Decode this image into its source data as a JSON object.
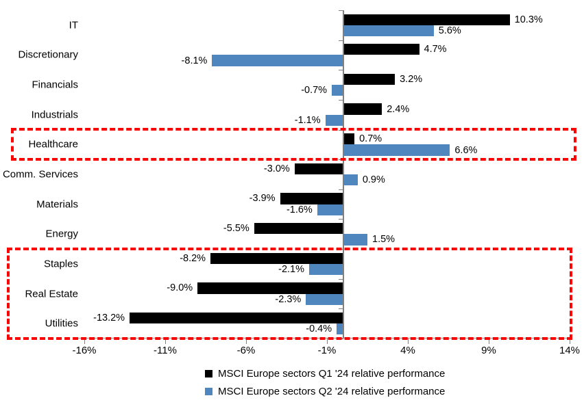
{
  "chart_data": {
    "type": "bar",
    "orientation": "horizontal",
    "title": "",
    "categories": [
      "IT",
      "Discretionary",
      "Financials",
      "Industrials",
      "Healthcare",
      "Comm. Services",
      "Materials",
      "Energy",
      "Staples",
      "Real Estate",
      "Utilities"
    ],
    "series": [
      {
        "name": "MSCI Europe sectors Q1 '24 relative performance",
        "color": "#000000",
        "values": [
          10.3,
          4.7,
          3.2,
          2.4,
          0.7,
          -3.0,
          -3.9,
          -5.5,
          -8.2,
          -9.0,
          -13.2
        ],
        "labels": [
          "10.3%",
          "4.7%",
          "3.2%",
          "2.4%",
          "0.7%",
          "-3.0%",
          "-3.9%",
          "-5.5%",
          "-8.2%",
          "-9.0%",
          "-13.2%"
        ]
      },
      {
        "name": "MSCI Europe sectors Q2 '24 relative performance",
        "color": "#4E86BD",
        "values": [
          5.6,
          -8.1,
          -0.7,
          -1.1,
          6.6,
          0.9,
          -1.6,
          1.5,
          -2.1,
          -2.3,
          -0.4
        ],
        "labels": [
          "5.6%",
          "-8.1%",
          "-0.7%",
          "-1.1%",
          "6.6%",
          "0.9%",
          "-1.6%",
          "1.5%",
          "-2.1%",
          "-2.3%",
          "-0.4%"
        ]
      }
    ],
    "x_axis": {
      "min": -16,
      "max": 14,
      "step": 5,
      "tick_values": [
        -16,
        -11,
        -6,
        -1,
        4,
        9,
        14
      ],
      "tick_labels": [
        "-16%",
        "-11%",
        "-6%",
        "-1%",
        "4%",
        "9%",
        "14%"
      ]
    },
    "gridlines": false,
    "data_labels": "outside-end",
    "legend_position": "bottom",
    "highlights": [
      {
        "name": "healthcare-highlight",
        "style": "red-dashed-rectangle",
        "color": "#FF0000",
        "categories": [
          "Healthcare"
        ]
      },
      {
        "name": "defensive-sectors-highlight",
        "style": "red-dashed-rectangle",
        "color": "#FF0000",
        "categories": [
          "Staples",
          "Real Estate",
          "Utilities"
        ]
      }
    ]
  },
  "colors": {
    "series_q1": "#000000",
    "series_q2": "#4E86BD",
    "highlight": "#FF0000",
    "axis": "#808080",
    "text": "#000000",
    "background": "#FFFFFF"
  }
}
